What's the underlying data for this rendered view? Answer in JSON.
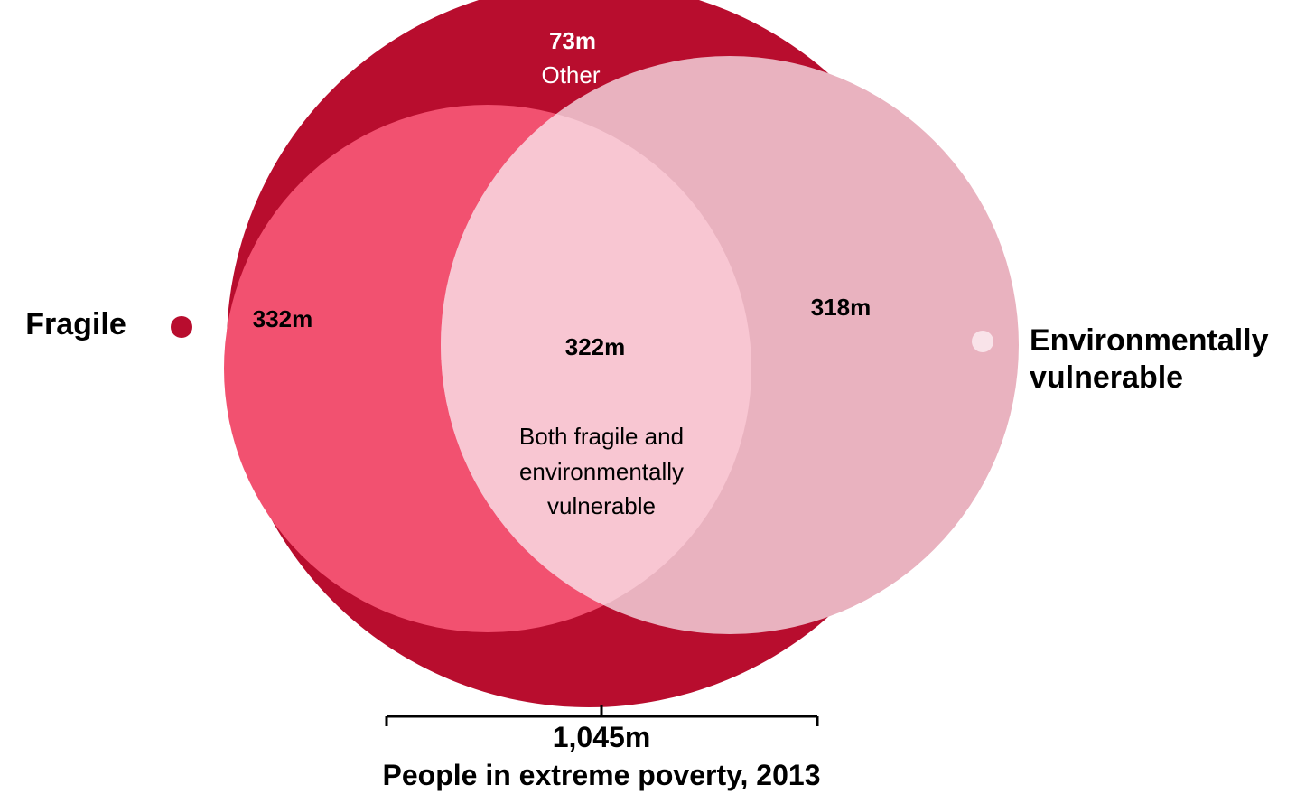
{
  "diagram": {
    "total_label": "1,045m",
    "caption": "People in extreme poverty, 2013",
    "other_value": "73m",
    "other_label": "Other",
    "fragile_only_value": "332m",
    "both_value": "322m",
    "both_label_lines": [
      "Both fragile and",
      "environmentally",
      "vulnerable"
    ],
    "env_only_value": "318m",
    "legend": {
      "fragile": "Fragile",
      "environmental_lines": [
        "Environmentally",
        "vulnerable"
      ]
    }
  },
  "chart_data": {
    "type": "venn",
    "total": 1045,
    "unit": "m",
    "sets": [
      {
        "name": "Fragile",
        "only": 332,
        "color": "#f25170"
      },
      {
        "name": "Environmentally vulnerable",
        "only": 318,
        "color": "#e9b2bf"
      }
    ],
    "intersection": 322,
    "other": 73,
    "colors": {
      "total": "#b80d2e",
      "intersection": "#f8c6d2",
      "fragile_marker": "#b80d2e",
      "environmental_marker": "#f9e3e9"
    }
  }
}
